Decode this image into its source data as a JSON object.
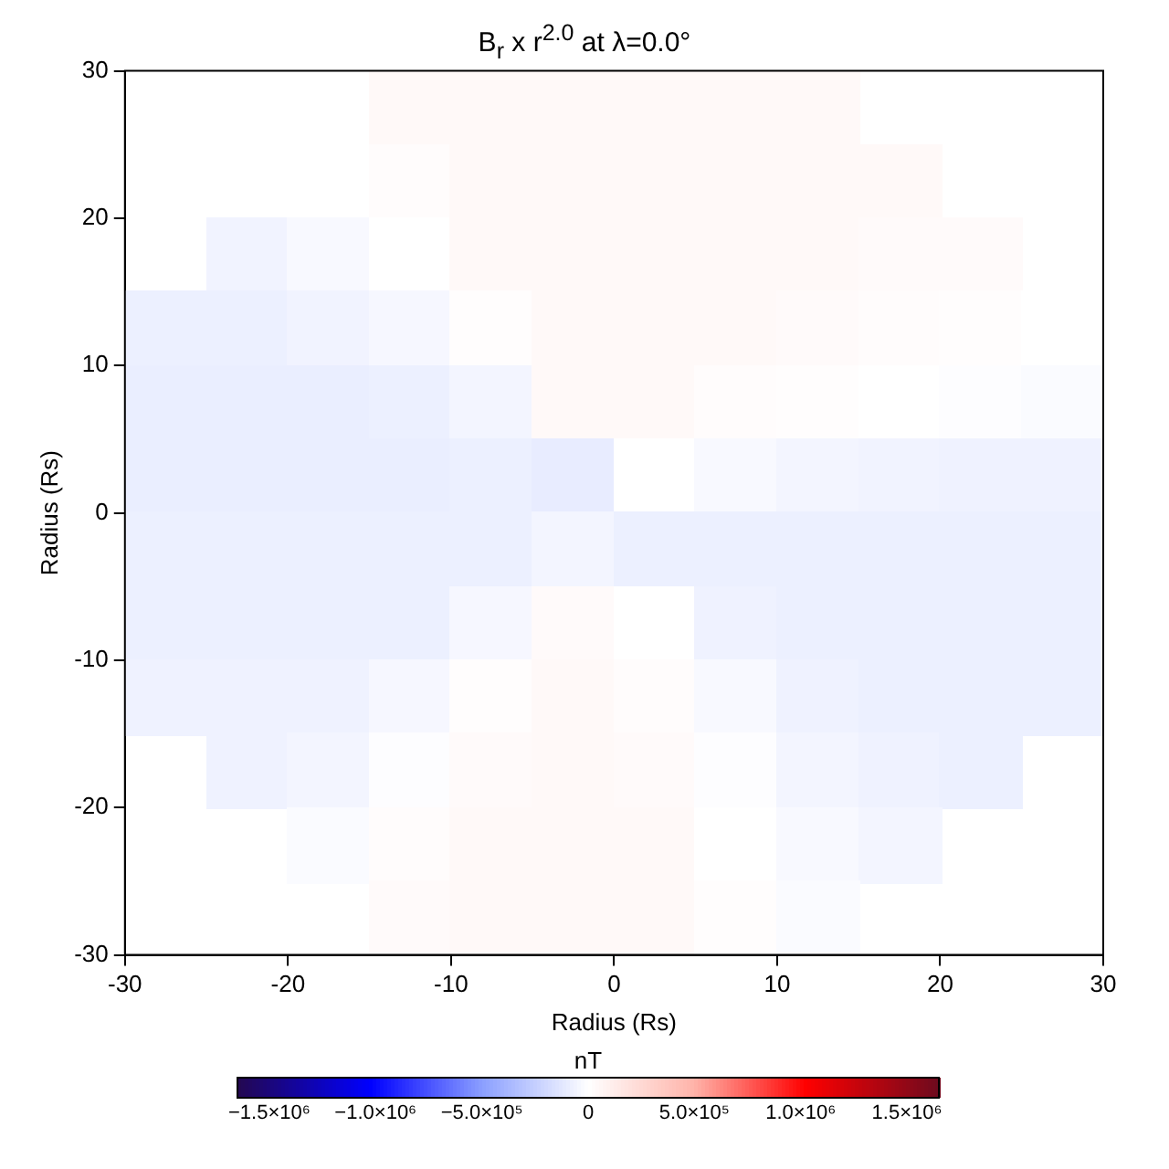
{
  "chart_data": {
    "type": "heatmap",
    "title": "B$_{r}$ x r$^{2.0}$ at λ=0.0°",
    "xlabel": "Radius (Rs)",
    "ylabel": "Radius (Rs)",
    "clabel": "nT",
    "x": [
      -27.5,
      -22.5,
      -17.5,
      -12.5,
      -7.5,
      -2.5,
      2.5,
      7.5,
      12.5,
      17.5,
      22.5,
      27.5
    ],
    "y": [
      27.5,
      22.5,
      17.5,
      12.5,
      7.5,
      2.5,
      -2.5,
      -7.5,
      -12.5,
      -17.5,
      -22.5,
      -27.5
    ],
    "cells": [
      [
        null,
        null,
        null,
        40000,
        40000,
        40000,
        40000,
        40000,
        40000,
        null,
        null,
        null
      ],
      [
        null,
        null,
        0,
        20000,
        40000,
        40000,
        40000,
        40000,
        40000,
        40000,
        null,
        null
      ],
      [
        null,
        -60000,
        -30000,
        0,
        40000,
        40000,
        40000,
        40000,
        40000,
        30000,
        30000,
        null
      ],
      [
        -80000,
        -80000,
        -60000,
        -40000,
        10000,
        40000,
        40000,
        40000,
        30000,
        20000,
        10000,
        0
      ],
      [
        -90000,
        -90000,
        -90000,
        -80000,
        -50000,
        40000,
        40000,
        20000,
        10000,
        0,
        -10000,
        -20000
      ],
      [
        -90000,
        -90000,
        -90000,
        -90000,
        -80000,
        -100000,
        0,
        -30000,
        -50000,
        -60000,
        -70000,
        -70000
      ],
      [
        -80000,
        -80000,
        -80000,
        -80000,
        -80000,
        -50000,
        -80000,
        -80000,
        -80000,
        -80000,
        -80000,
        -80000
      ],
      [
        -80000,
        -80000,
        -80000,
        -80000,
        -40000,
        30000,
        0,
        -70000,
        -80000,
        -80000,
        -80000,
        -80000
      ],
      [
        -70000,
        -70000,
        -70000,
        -40000,
        10000,
        40000,
        20000,
        -30000,
        -70000,
        -80000,
        -80000,
        -80000
      ],
      [
        null,
        -70000,
        -50000,
        -10000,
        30000,
        40000,
        30000,
        -10000,
        -50000,
        -70000,
        -80000,
        null
      ],
      [
        null,
        null,
        -20000,
        20000,
        40000,
        40000,
        40000,
        0,
        -30000,
        -50000,
        null,
        null
      ],
      [
        null,
        null,
        null,
        30000,
        40000,
        40000,
        40000,
        10000,
        -20000,
        null,
        null,
        null
      ]
    ],
    "xlim": [
      -30,
      30
    ],
    "ylim": [
      -30,
      30
    ],
    "xticks": [
      -30,
      -20,
      -10,
      0,
      10,
      20,
      30
    ],
    "yticks": [
      -30,
      -20,
      -10,
      0,
      10,
      20,
      30
    ],
    "clim": [
      -1650000,
      1650000
    ],
    "cticks": [
      {
        "value": -1500000,
        "label": "−1.5×10⁶"
      },
      {
        "value": -1000000,
        "label": "−1.0×10⁶"
      },
      {
        "value": -500000,
        "label": "−5.0×10⁵"
      },
      0,
      {
        "value": 500000,
        "label": "5.0×10⁵"
      },
      {
        "value": 1000000,
        "label": "1.0×10⁶"
      },
      {
        "value": 1500000,
        "label": "1.5×10⁶"
      }
    ]
  }
}
